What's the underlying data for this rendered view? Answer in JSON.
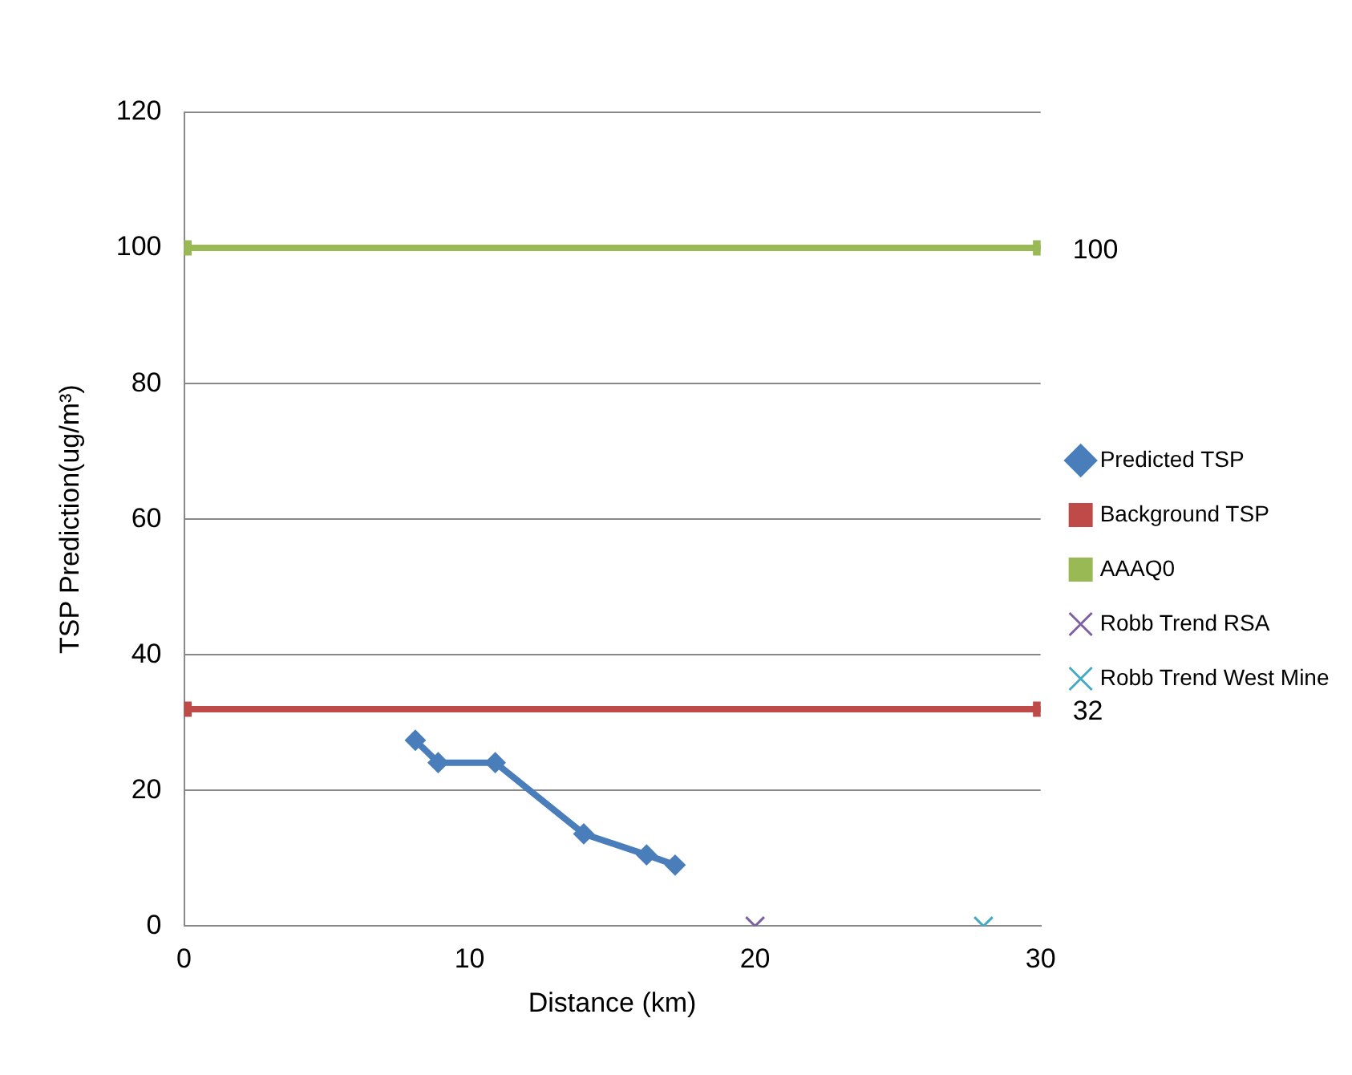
{
  "chart_data": {
    "type": "line",
    "xlabel": "Distance (km)",
    "ylabel": "TSP Prediction(ug/m³)",
    "xlim": [
      0,
      30
    ],
    "xticks": [
      0,
      10,
      20,
      30
    ],
    "ylim": [
      0,
      120
    ],
    "yticks": [
      0,
      20,
      40,
      60,
      80,
      100,
      120
    ],
    "grid": "y",
    "legend": "right",
    "series": [
      {
        "name": "Predicted TSP",
        "color": "#4a7ebb",
        "marker": "diamond",
        "x": [
          8.1,
          8.9,
          10.9,
          14.0,
          16.2,
          17.2
        ],
        "values": [
          27.4,
          24.1,
          24.1,
          13.6,
          10.5,
          9.0
        ]
      },
      {
        "name": "Background TSP",
        "color": "#be4b48",
        "marker": "square",
        "x": [
          0,
          30
        ],
        "values": [
          32,
          32
        ],
        "value_labels": [
          null,
          "32"
        ]
      },
      {
        "name": "AAAQ0",
        "color": "#98b954",
        "marker": "square",
        "x": [
          0,
          30
        ],
        "values": [
          100,
          100
        ],
        "value_labels": [
          null,
          "100"
        ]
      },
      {
        "name": "Robb Trend RSA",
        "type": "scatter",
        "color": "#7d60a0",
        "marker": "cross",
        "x": [
          20
        ],
        "values": [
          0
        ]
      },
      {
        "name": "Robb Trend West Mine",
        "type": "scatter",
        "color": "#46aac5",
        "marker": "cross",
        "x": [
          28
        ],
        "values": [
          0
        ]
      }
    ]
  }
}
